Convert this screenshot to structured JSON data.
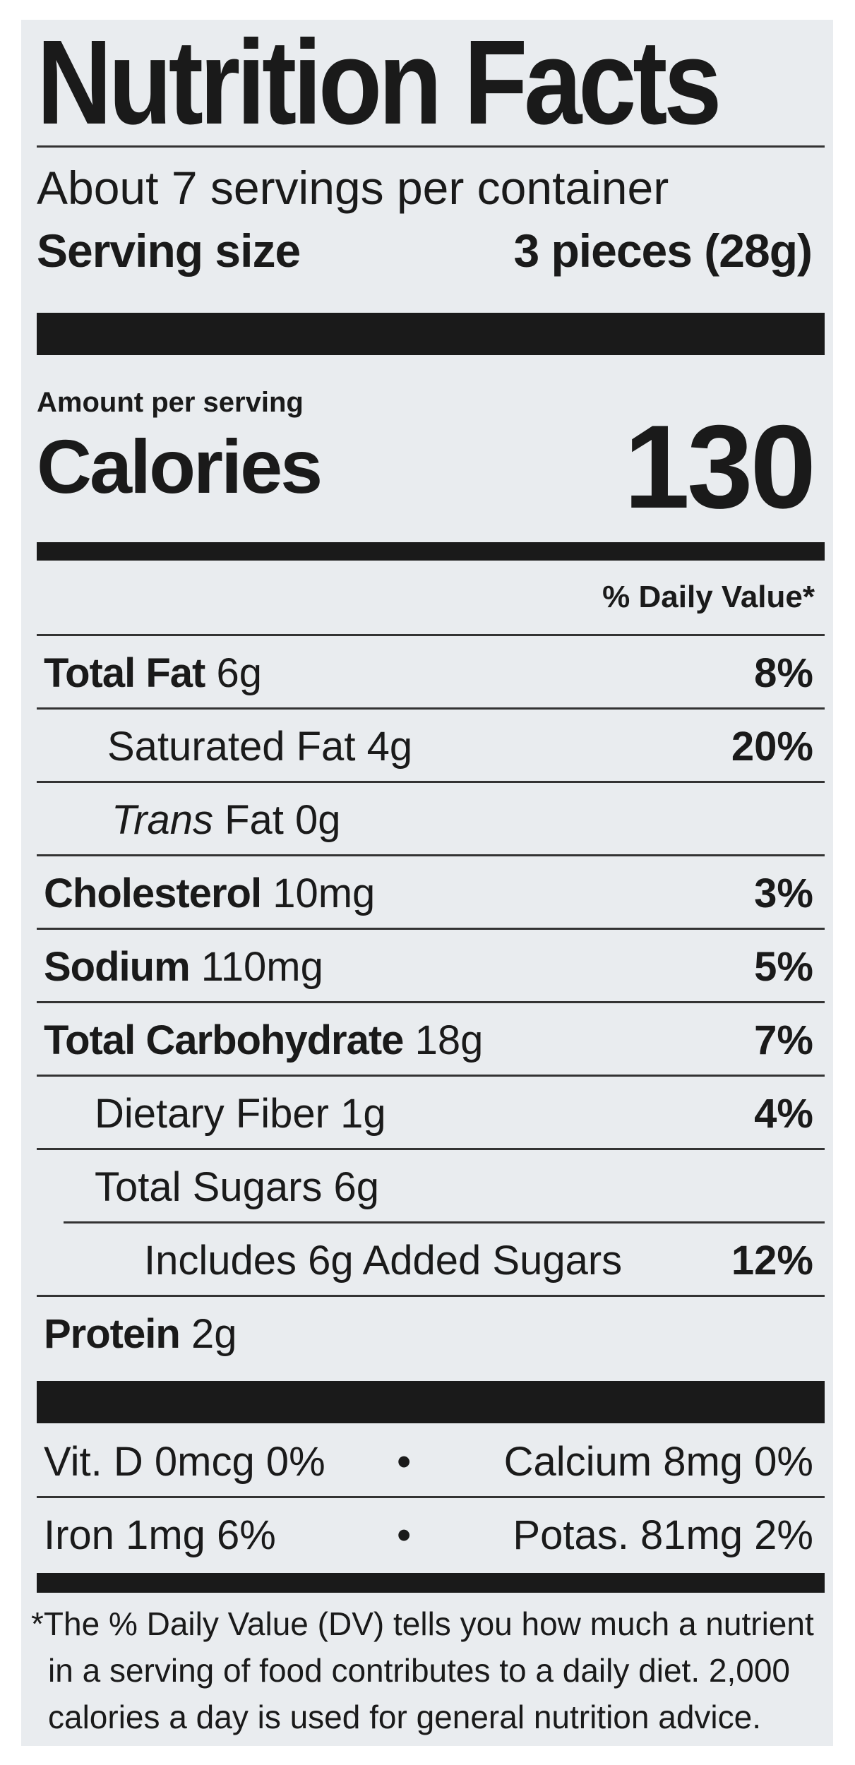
{
  "title": "Nutrition Facts",
  "servings_per_container": "About 7 servings per container",
  "serving_size_label": "Serving size",
  "serving_size_value": "3 pieces (28g)",
  "amount_per_serving": "Amount per serving",
  "calories_label": "Calories",
  "calories_value": "130",
  "daily_value_header": "% Daily Value*",
  "nutrients": [
    {
      "name": "Total Fat",
      "amount": "6g",
      "dv": "8%"
    },
    {
      "name": "Saturated Fat",
      "amount": "4g",
      "dv": "20%"
    },
    {
      "name_italic": "Trans",
      "name": "Fat",
      "amount": "0g",
      "dv": ""
    },
    {
      "name": "Cholesterol",
      "amount": "10mg",
      "dv": "3%"
    },
    {
      "name": "Sodium",
      "amount": "110mg",
      "dv": "5%"
    },
    {
      "name": "Total Carbohydrate",
      "amount": "18g",
      "dv": "7%"
    },
    {
      "name": "Dietary Fiber",
      "amount": "1g",
      "dv": "4%"
    },
    {
      "name": "Total Sugars",
      "amount": "6g",
      "dv": ""
    },
    {
      "name": "Includes 6g Added Sugars",
      "amount": "",
      "dv": "12%"
    },
    {
      "name": "Protein",
      "amount": "2g",
      "dv": ""
    }
  ],
  "micronutrients": [
    {
      "left": "Vit. D 0mcg 0%",
      "right": "Calcium 8mg 0%"
    },
    {
      "left": "Iron 1mg 6%",
      "right": "Potas. 81mg 2%"
    }
  ],
  "bullet": "•",
  "footnote_lines": [
    "*The % Daily Value (DV) tells you how much a nutrient",
    "in a serving of food contributes to a daily diet. 2,000",
    "calories a day is used for general nutrition advice."
  ]
}
